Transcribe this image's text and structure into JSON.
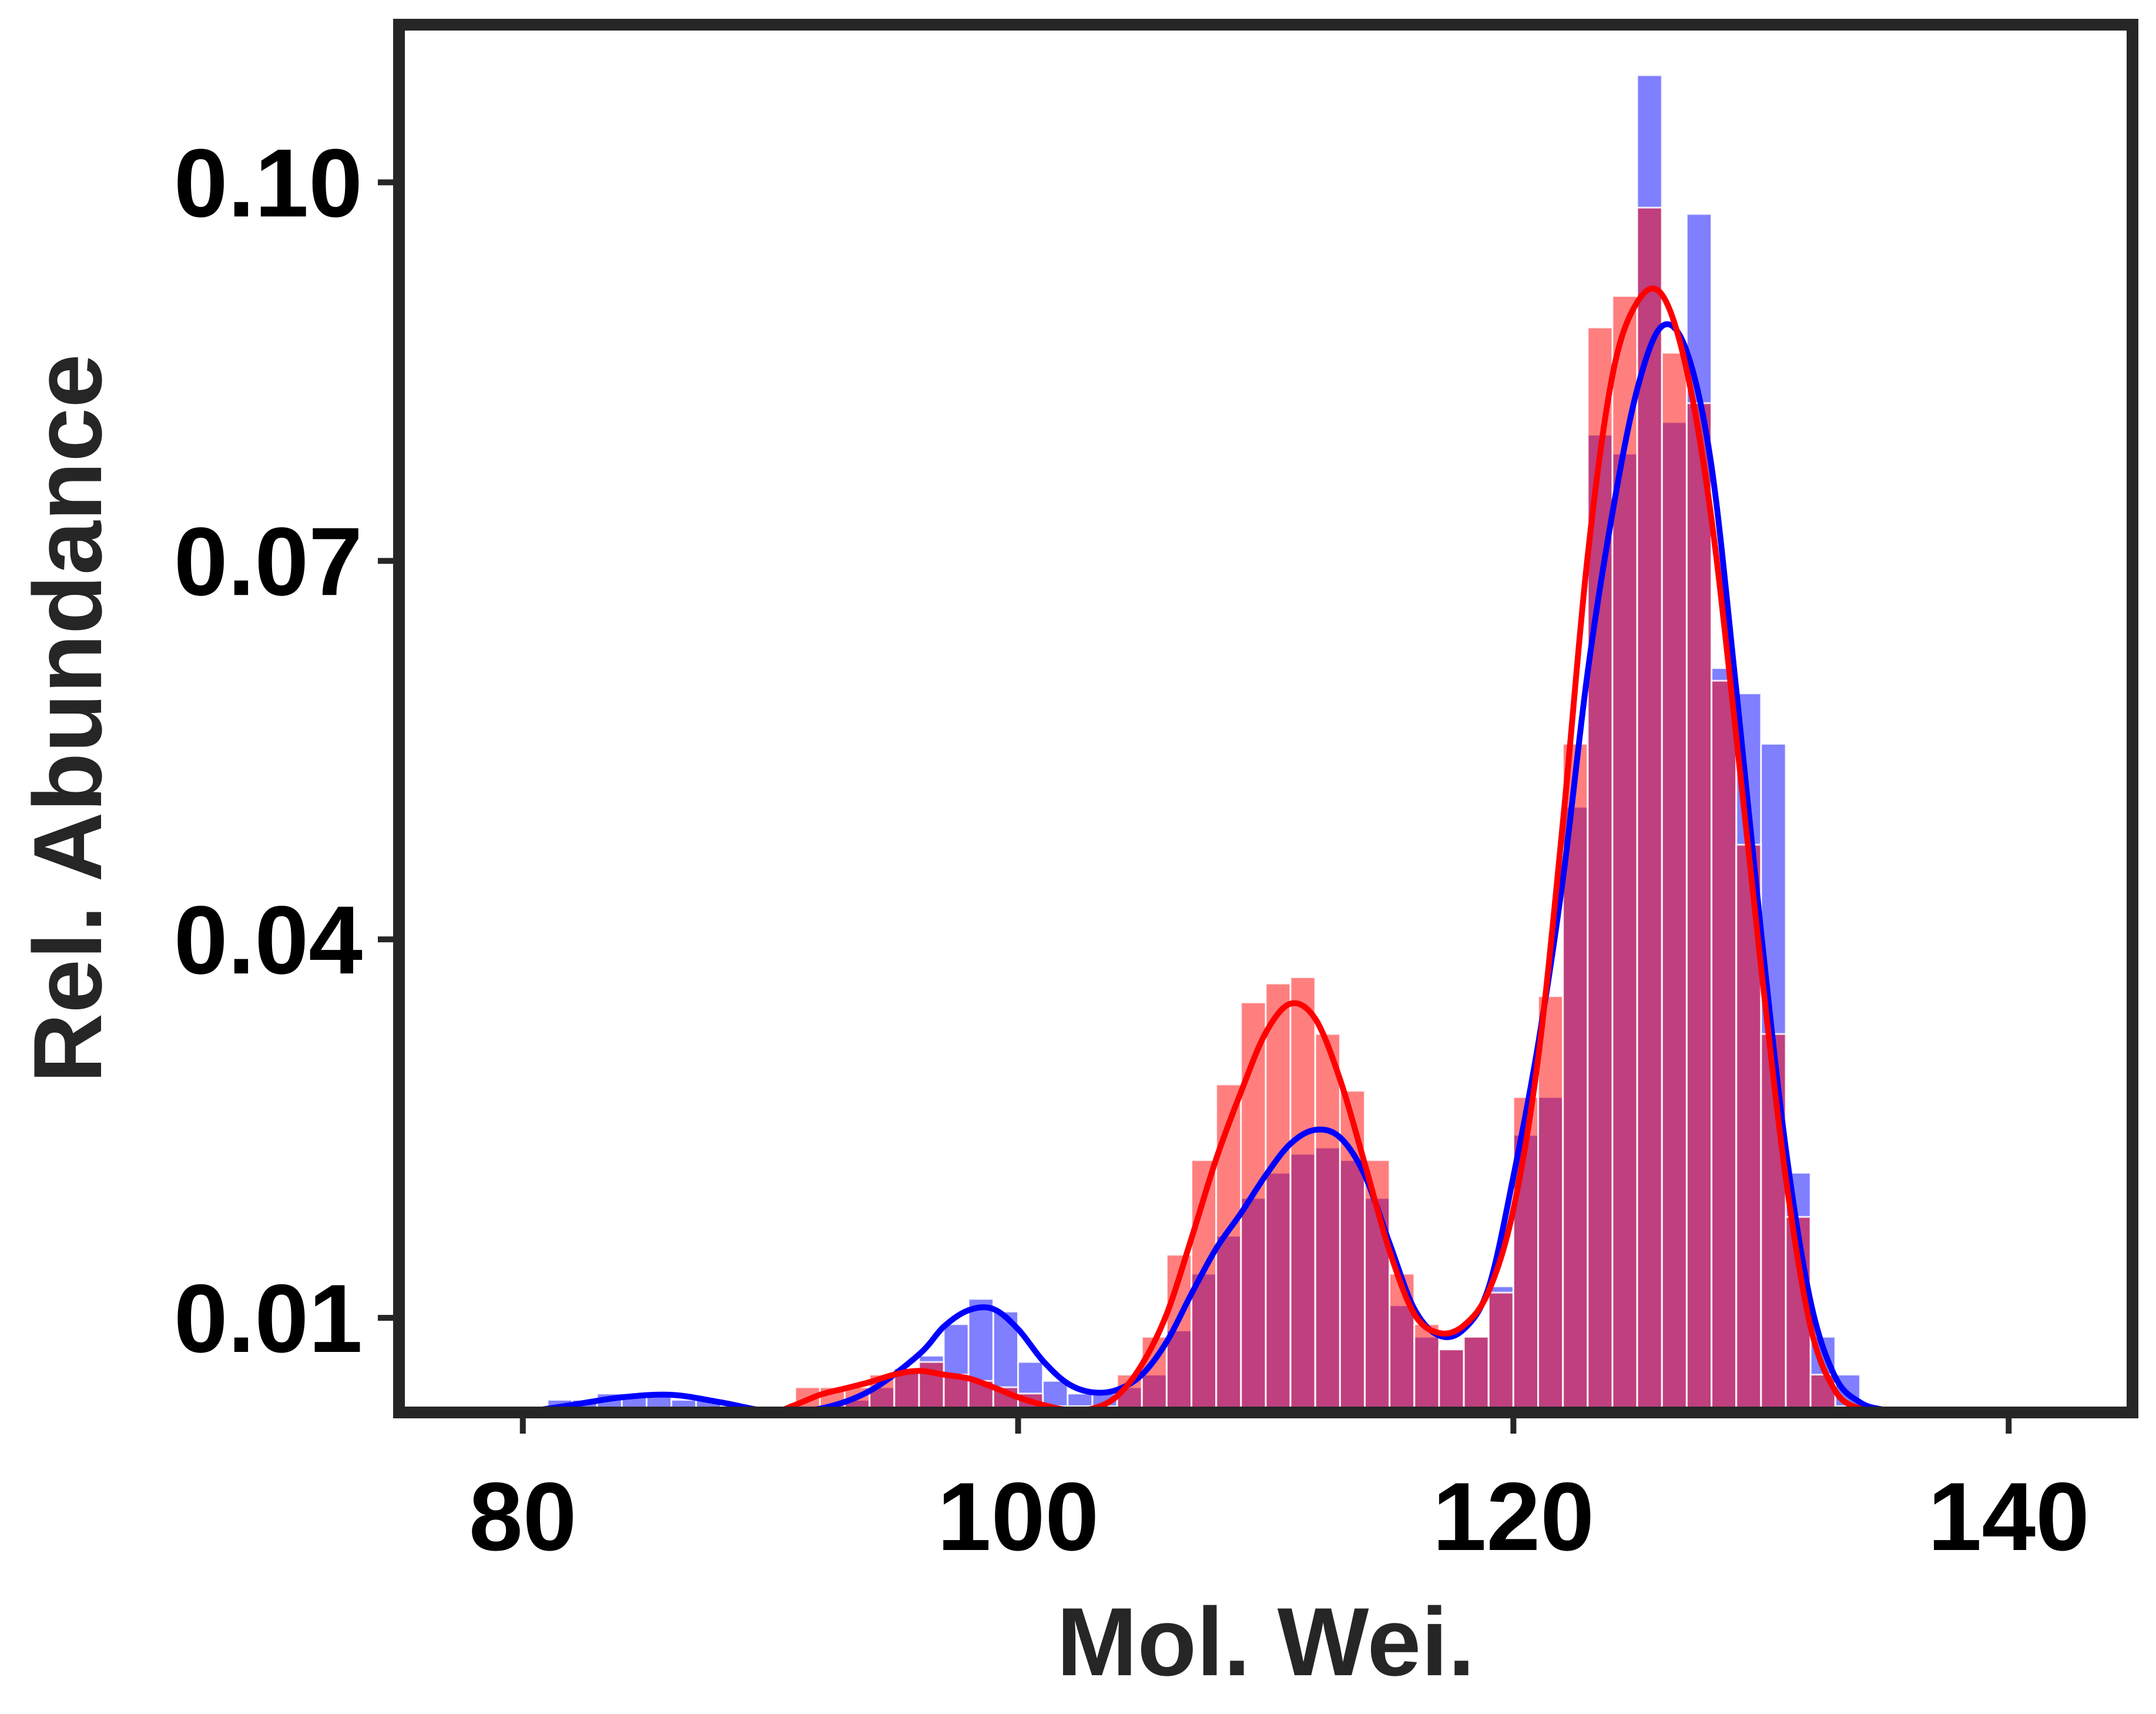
{
  "chart_data": {
    "type": "bar",
    "title": "",
    "xlabel": "Mol. Wei.",
    "ylabel": "Rel. Abundance",
    "xlim": [
      75,
      145
    ],
    "ylim": [
      0.0025,
      0.1125
    ],
    "xticks": [
      80,
      100,
      120,
      140
    ],
    "yticks": [
      0.01,
      0.04,
      0.07,
      0.1
    ],
    "ytick_labels": [
      "0.01",
      "0.04",
      "0.07",
      "0.10"
    ],
    "grid": false,
    "legend": "none",
    "bin_width": 1.0,
    "series": [
      {
        "kind": "histogram",
        "color": "#0000ff",
        "opacity": 0.5,
        "bins": [
          [
            81.5,
            0.0035
          ],
          [
            82.5,
            0.0035
          ],
          [
            83.5,
            0.004
          ],
          [
            84.5,
            0.004
          ],
          [
            85.5,
            0.004
          ],
          [
            86.5,
            0.0035
          ],
          [
            87.5,
            0.0035
          ],
          [
            88.5,
            0.003
          ],
          [
            89.5,
            0.0025
          ],
          [
            90.5,
            0.0025
          ],
          [
            91.5,
            0.0025
          ],
          [
            92.5,
            0.003
          ],
          [
            93.5,
            0.0035
          ],
          [
            94.5,
            0.0045
          ],
          [
            95.5,
            0.006
          ],
          [
            96.5,
            0.007
          ],
          [
            97.5,
            0.0095
          ],
          [
            98.5,
            0.0115
          ],
          [
            99.5,
            0.0105
          ],
          [
            100.5,
            0.0065
          ],
          [
            101.5,
            0.005
          ],
          [
            102.5,
            0.004
          ],
          [
            103.5,
            0.004
          ],
          [
            104.5,
            0.0045
          ],
          [
            105.5,
            0.0055
          ],
          [
            106.5,
            0.009
          ],
          [
            107.5,
            0.0135
          ],
          [
            108.5,
            0.0165
          ],
          [
            109.5,
            0.0195
          ],
          [
            110.5,
            0.0215
          ],
          [
            111.5,
            0.023
          ],
          [
            112.5,
            0.0235
          ],
          [
            113.5,
            0.0225
          ],
          [
            114.5,
            0.0195
          ],
          [
            115.5,
            0.011
          ],
          [
            116.5,
            0.0085
          ],
          [
            117.5,
            0.0075
          ],
          [
            118.5,
            0.0085
          ],
          [
            119.5,
            0.0125
          ],
          [
            120.5,
            0.0245
          ],
          [
            121.5,
            0.0275
          ],
          [
            122.5,
            0.0505
          ],
          [
            123.5,
            0.08
          ],
          [
            124.5,
            0.0785
          ],
          [
            125.5,
            0.1085
          ],
          [
            126.5,
            0.081
          ],
          [
            127.5,
            0.0975
          ],
          [
            128.5,
            0.0615
          ],
          [
            129.5,
            0.0595
          ],
          [
            130.5,
            0.0555
          ],
          [
            131.5,
            0.0215
          ],
          [
            132.5,
            0.0085
          ],
          [
            133.5,
            0.0055
          ],
          [
            134.5,
            0.003
          ]
        ]
      },
      {
        "kind": "histogram",
        "color": "#ff0000",
        "opacity": 0.5,
        "bins": [
          [
            82.5,
            0.0025
          ],
          [
            83.5,
            0.0025
          ],
          [
            84.5,
            0.0025
          ],
          [
            85.5,
            0.0025
          ],
          [
            86.5,
            0.0025
          ],
          [
            87.5,
            0.0025
          ],
          [
            88.5,
            0.0025
          ],
          [
            89.5,
            0.0025
          ],
          [
            90.5,
            0.0025
          ],
          [
            91.5,
            0.0045
          ],
          [
            92.5,
            0.0045
          ],
          [
            93.5,
            0.0045
          ],
          [
            94.5,
            0.0055
          ],
          [
            95.5,
            0.006
          ],
          [
            96.5,
            0.0065
          ],
          [
            97.5,
            0.0055
          ],
          [
            98.5,
            0.005
          ],
          [
            99.5,
            0.0045
          ],
          [
            100.5,
            0.004
          ],
          [
            101.5,
            0.003
          ],
          [
            102.5,
            0.003
          ],
          [
            103.5,
            0.003
          ],
          [
            104.5,
            0.0055
          ],
          [
            105.5,
            0.0085
          ],
          [
            106.5,
            0.015
          ],
          [
            107.5,
            0.0225
          ],
          [
            108.5,
            0.0285
          ],
          [
            109.5,
            0.035
          ],
          [
            110.5,
            0.0365
          ],
          [
            111.5,
            0.037
          ],
          [
            112.5,
            0.0325
          ],
          [
            113.5,
            0.028
          ],
          [
            114.5,
            0.0225
          ],
          [
            115.5,
            0.0135
          ],
          [
            116.5,
            0.0095
          ],
          [
            117.5,
            0.0075
          ],
          [
            118.5,
            0.0085
          ],
          [
            119.5,
            0.012
          ],
          [
            120.5,
            0.0275
          ],
          [
            121.5,
            0.0355
          ],
          [
            122.5,
            0.0555
          ],
          [
            123.5,
            0.0885
          ],
          [
            124.5,
            0.091
          ],
          [
            125.5,
            0.098
          ],
          [
            126.5,
            0.0865
          ],
          [
            127.5,
            0.0825
          ],
          [
            128.5,
            0.0605
          ],
          [
            129.5,
            0.0475
          ],
          [
            130.5,
            0.0325
          ],
          [
            131.5,
            0.018
          ],
          [
            132.5,
            0.0055
          ],
          [
            133.5,
            0.003
          ]
        ]
      },
      {
        "kind": "kde",
        "color": "#0000ff",
        "points": [
          [
            80,
            0.0025
          ],
          [
            82,
            0.0031
          ],
          [
            84,
            0.0037
          ],
          [
            86,
            0.0039
          ],
          [
            88,
            0.0033
          ],
          [
            90,
            0.0026
          ],
          [
            92,
            0.0028
          ],
          [
            94,
            0.0042
          ],
          [
            96,
            0.0071
          ],
          [
            97,
            0.0093
          ],
          [
            98,
            0.0106
          ],
          [
            99,
            0.0107
          ],
          [
            100,
            0.0091
          ],
          [
            101,
            0.0066
          ],
          [
            102,
            0.0048
          ],
          [
            103,
            0.0041
          ],
          [
            104,
            0.0043
          ],
          [
            105,
            0.0055
          ],
          [
            106,
            0.0081
          ],
          [
            107,
            0.0119
          ],
          [
            108,
            0.0155
          ],
          [
            109,
            0.0183
          ],
          [
            110,
            0.0213
          ],
          [
            111,
            0.0238
          ],
          [
            112,
            0.0249
          ],
          [
            113,
            0.0243
          ],
          [
            114,
            0.0213
          ],
          [
            115,
            0.0159
          ],
          [
            116,
            0.0107
          ],
          [
            117,
            0.0086
          ],
          [
            118,
            0.0091
          ],
          [
            119,
            0.0124
          ],
          [
            120,
            0.0212
          ],
          [
            121,
            0.0317
          ],
          [
            122,
            0.0448
          ],
          [
            123,
            0.0612
          ],
          [
            124,
            0.0738
          ],
          [
            125,
            0.0836
          ],
          [
            126,
            0.0886
          ],
          [
            127,
            0.0866
          ],
          [
            128,
            0.0775
          ],
          [
            129,
            0.0598
          ],
          [
            130,
            0.0406
          ],
          [
            131,
            0.0234
          ],
          [
            132,
            0.0113
          ],
          [
            133,
            0.0053
          ],
          [
            134,
            0.0033
          ],
          [
            135,
            0.0027
          ],
          [
            136,
            0.0025
          ],
          [
            140,
            0.0025
          ],
          [
            142,
            0.0025
          ]
        ]
      },
      {
        "kind": "kde",
        "color": "#ff0000",
        "points": [
          [
            80,
            0.0025
          ],
          [
            84,
            0.0025
          ],
          [
            88,
            0.0025
          ],
          [
            90,
            0.0025
          ],
          [
            91,
            0.0031
          ],
          [
            92,
            0.0039
          ],
          [
            93,
            0.0044
          ],
          [
            94,
            0.0049
          ],
          [
            95,
            0.0055
          ],
          [
            96,
            0.0058
          ],
          [
            97,
            0.0055
          ],
          [
            98,
            0.0052
          ],
          [
            99,
            0.0045
          ],
          [
            100,
            0.0037
          ],
          [
            101,
            0.0031
          ],
          [
            102,
            0.0027
          ],
          [
            103,
            0.0028
          ],
          [
            104,
            0.0038
          ],
          [
            105,
            0.0063
          ],
          [
            106,
            0.0103
          ],
          [
            107,
            0.0163
          ],
          [
            108,
            0.0226
          ],
          [
            109,
            0.0279
          ],
          [
            110,
            0.0326
          ],
          [
            111,
            0.0349
          ],
          [
            112,
            0.0337
          ],
          [
            113,
            0.0289
          ],
          [
            114,
            0.0222
          ],
          [
            115,
            0.0153
          ],
          [
            116,
            0.0103
          ],
          [
            117,
            0.0088
          ],
          [
            118,
            0.0094
          ],
          [
            119,
            0.0121
          ],
          [
            120,
            0.0186
          ],
          [
            121,
            0.0306
          ],
          [
            122,
            0.0493
          ],
          [
            123,
            0.0704
          ],
          [
            124,
            0.0847
          ],
          [
            125,
            0.0905
          ],
          [
            126,
            0.0911
          ],
          [
            127,
            0.0851
          ],
          [
            128,
            0.0733
          ],
          [
            129,
            0.0561
          ],
          [
            130,
            0.0378
          ],
          [
            131,
            0.0211
          ],
          [
            132,
            0.0093
          ],
          [
            133,
            0.0042
          ],
          [
            134,
            0.0028
          ],
          [
            135,
            0.0025
          ],
          [
            140,
            0.0025
          ]
        ]
      }
    ]
  }
}
